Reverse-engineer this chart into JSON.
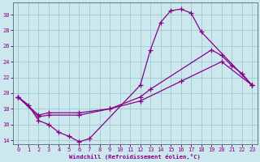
{
  "xlabel": "Windchill (Refroidissement éolien,°C)",
  "bg_color": "#cce8ee",
  "line_color": "#880088",
  "grid_color": "#99cccc",
  "xlim": [
    -0.5,
    23.5
  ],
  "ylim": [
    13.5,
    31.5
  ],
  "yticks": [
    14,
    16,
    18,
    20,
    22,
    24,
    26,
    28,
    30
  ],
  "xticks": [
    0,
    1,
    2,
    3,
    4,
    5,
    6,
    7,
    8,
    9,
    10,
    11,
    12,
    13,
    14,
    15,
    16,
    17,
    18,
    19,
    20,
    21,
    22,
    23
  ],
  "line1_x": [
    0,
    1,
    2,
    3,
    4,
    5,
    6,
    7,
    12,
    13,
    14,
    15,
    16,
    17,
    18,
    23
  ],
  "line1_y": [
    19.5,
    18.5,
    16.5,
    16.0,
    15.0,
    14.5,
    13.8,
    14.2,
    21.0,
    25.5,
    29.0,
    30.5,
    30.7,
    30.2,
    27.8,
    21.0
  ],
  "line2_x": [
    0,
    2,
    3,
    6,
    9,
    12,
    13,
    19,
    20,
    21,
    22,
    23
  ],
  "line2_y": [
    19.5,
    17.0,
    17.2,
    17.2,
    18.0,
    19.5,
    20.5,
    25.5,
    24.8,
    23.5,
    22.5,
    21.0
  ],
  "line3_x": [
    0,
    2,
    3,
    6,
    9,
    12,
    16,
    20,
    23
  ],
  "line3_y": [
    19.5,
    17.2,
    17.5,
    17.5,
    18.0,
    19.0,
    21.5,
    24.0,
    21.0
  ]
}
